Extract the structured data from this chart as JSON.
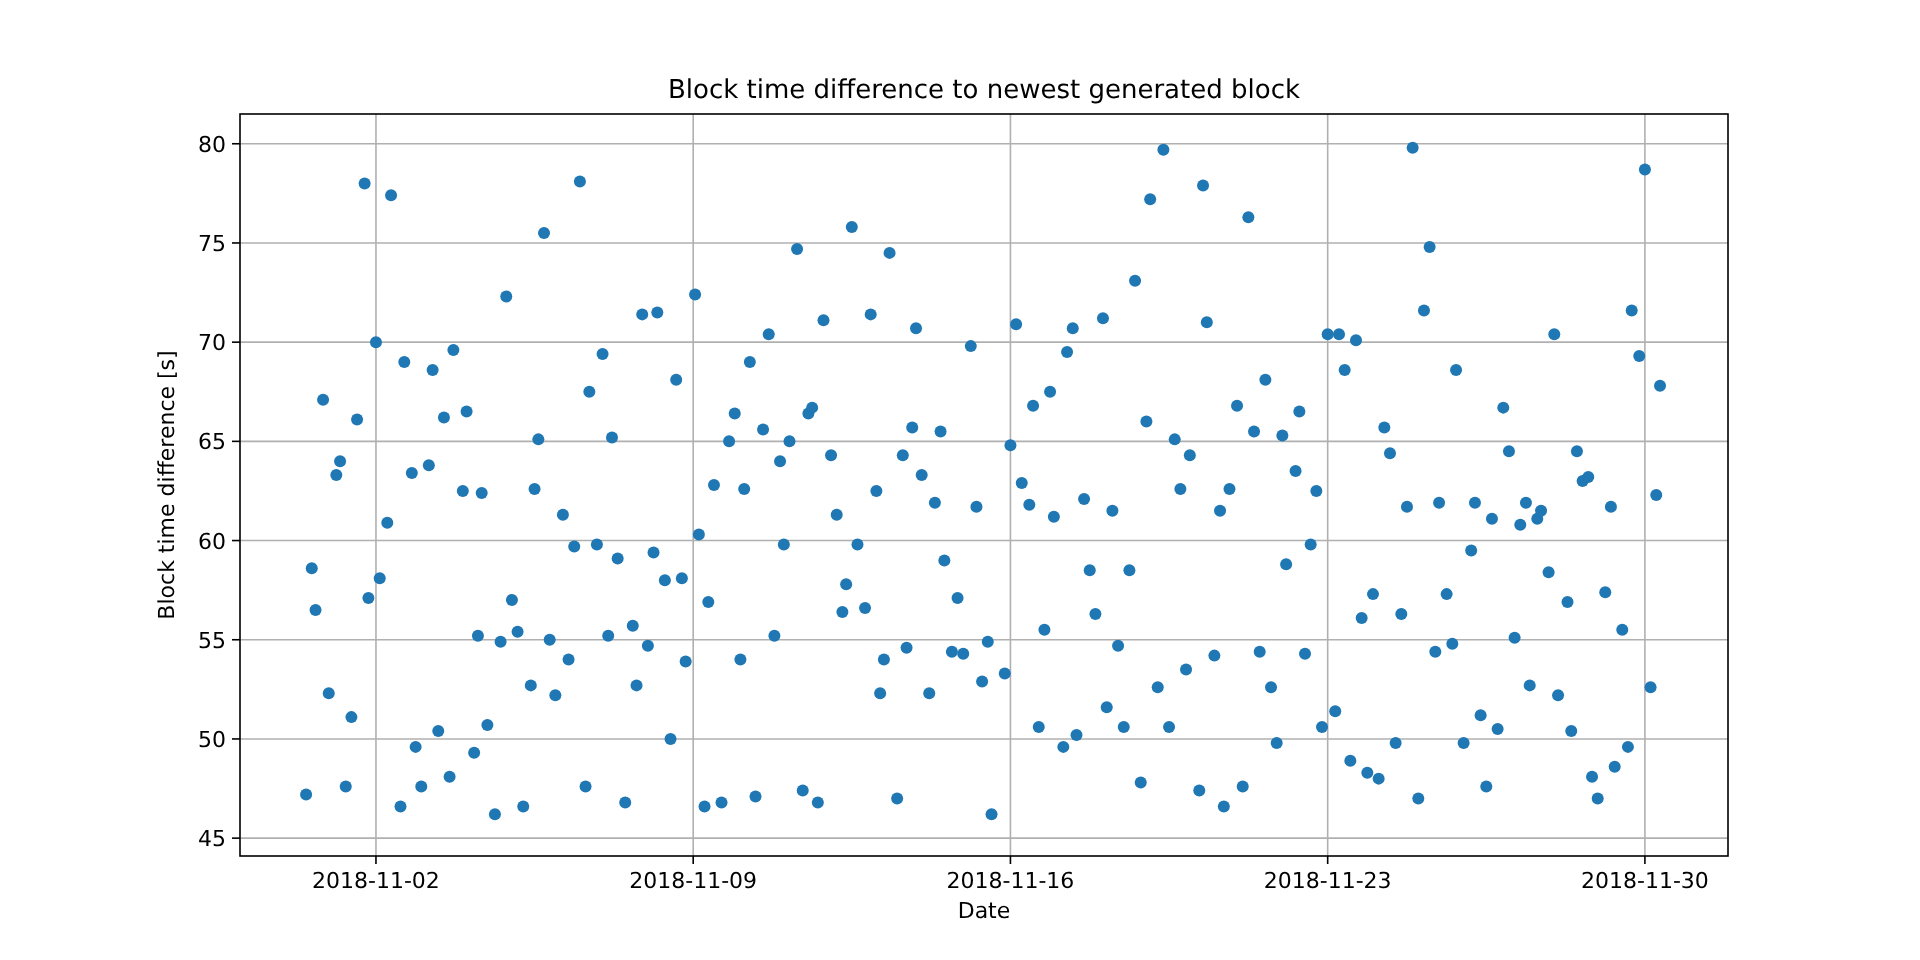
{
  "chart_data": {
    "type": "scatter",
    "title": "Block time difference to newest generated block",
    "xlabel": "Date",
    "ylabel": "Block time difference [s]",
    "xlim": [
      "2018-10-30T00:00",
      "2018-12-01T20:00"
    ],
    "ylim": [
      44.1,
      81.5
    ],
    "xticks": [
      "2018-11-02",
      "2018-11-09",
      "2018-11-16",
      "2018-11-23",
      "2018-11-30"
    ],
    "yticks": [
      45,
      50,
      55,
      60,
      65,
      70,
      75,
      80
    ],
    "grid": true,
    "marker": "circle",
    "series": [
      {
        "color": "#1f77b4",
        "x": [
          "2018-10-31T11:00",
          "2018-10-31T14:00",
          "2018-10-31T16:00",
          "2018-10-31T20:00",
          "2018-10-31T23:00",
          "2018-11-01T03:00",
          "2018-11-01T05:00",
          "2018-11-01T08:00",
          "2018-11-01T11:00",
          "2018-11-01T14:00",
          "2018-11-01T18:00",
          "2018-11-01T20:00",
          "2018-11-02T00:00",
          "2018-11-02T02:00",
          "2018-11-02T06:00",
          "2018-11-02T08:00",
          "2018-11-02T13:00",
          "2018-11-02T15:00",
          "2018-11-02T19:00",
          "2018-11-02T21:00",
          "2018-11-03T00:00",
          "2018-11-03T04:00",
          "2018-11-03T06:00",
          "2018-11-03T09:00",
          "2018-11-03T12:00",
          "2018-11-03T15:00",
          "2018-11-03T17:00",
          "2018-11-03T22:00",
          "2018-11-04T00:00",
          "2018-11-04T04:00",
          "2018-11-04T06:00",
          "2018-11-04T08:00",
          "2018-11-04T11:00",
          "2018-11-04T15:00",
          "2018-11-04T18:00",
          "2018-11-04T21:00",
          "2018-11-05T00:00",
          "2018-11-05T03:00",
          "2018-11-05T06:00",
          "2018-11-05T10:00",
          "2018-11-05T12:00",
          "2018-11-05T14:00",
          "2018-11-05T17:00",
          "2018-11-05T20:00",
          "2018-11-05T23:00",
          "2018-11-06T03:00",
          "2018-11-06T06:00",
          "2018-11-06T09:00",
          "2018-11-06T12:00",
          "2018-11-06T15:00",
          "2018-11-06T17:00",
          "2018-11-06T21:00",
          "2018-11-07T00:00",
          "2018-11-07T03:00",
          "2018-11-07T05:00",
          "2018-11-07T08:00",
          "2018-11-07T12:00",
          "2018-11-07T16:00",
          "2018-11-07T18:00",
          "2018-11-07T21:00",
          "2018-11-08T00:00",
          "2018-11-08T03:00",
          "2018-11-08T05:00",
          "2018-11-08T09:00",
          "2018-11-08T12:00",
          "2018-11-08T15:00",
          "2018-11-08T18:00",
          "2018-11-08T20:00",
          "2018-11-09T01:00",
          "2018-11-09T03:00",
          "2018-11-09T06:00",
          "2018-11-09T08:00",
          "2018-11-09T11:00",
          "2018-11-09T15:00",
          "2018-11-09T19:00",
          "2018-11-09T22:00",
          "2018-11-10T01:00",
          "2018-11-10T03:00",
          "2018-11-10T06:00",
          "2018-11-10T09:00",
          "2018-11-10T13:00",
          "2018-11-10T16:00",
          "2018-11-10T19:00",
          "2018-11-10T22:00",
          "2018-11-11T00:00",
          "2018-11-11T03:00",
          "2018-11-11T07:00",
          "2018-11-11T10:00",
          "2018-11-11T13:00",
          "2018-11-11T15:00",
          "2018-11-11T18:00",
          "2018-11-11T21:00",
          "2018-11-12T01:00",
          "2018-11-12T04:00",
          "2018-11-12T07:00",
          "2018-11-12T09:00",
          "2018-11-12T12:00",
          "2018-11-12T15:00",
          "2018-11-12T19:00",
          "2018-11-12T22:00",
          "2018-11-13T01:00",
          "2018-11-13T03:00",
          "2018-11-13T05:00",
          "2018-11-13T08:00",
          "2018-11-13T12:00",
          "2018-11-13T15:00",
          "2018-11-13T17:00",
          "2018-11-13T20:00",
          "2018-11-13T22:00",
          "2018-11-14T01:00",
          "2018-11-14T05:00",
          "2018-11-14T08:00",
          "2018-11-14T11:00",
          "2018-11-14T13:00",
          "2018-11-14T17:00",
          "2018-11-14T20:00",
          "2018-11-14T23:00",
          "2018-11-15T03:00",
          "2018-11-15T06:00",
          "2018-11-15T09:00",
          "2018-11-15T12:00",
          "2018-11-15T14:00",
          "2018-11-15T21:00",
          "2018-11-16T00:00",
          "2018-11-16T03:00",
          "2018-11-16T06:00",
          "2018-11-16T10:00",
          "2018-11-16T12:00",
          "2018-11-16T15:00",
          "2018-11-16T18:00",
          "2018-11-16T21:00",
          "2018-11-16T23:00",
          "2018-11-17T04:00",
          "2018-11-17T06:00",
          "2018-11-17T09:00",
          "2018-11-17T11:00",
          "2018-11-17T15:00",
          "2018-11-17T18:00",
          "2018-11-17T21:00",
          "2018-11-18T01:00",
          "2018-11-18T03:00",
          "2018-11-18T06:00",
          "2018-11-18T09:00",
          "2018-11-18T12:00",
          "2018-11-18T15:00",
          "2018-11-18T18:00",
          "2018-11-18T21:00",
          "2018-11-19T00:00",
          "2018-11-19T02:00",
          "2018-11-19T06:00",
          "2018-11-19T09:00",
          "2018-11-19T12:00",
          "2018-11-19T15:00",
          "2018-11-19T18:00",
          "2018-11-19T21:00",
          "2018-11-19T23:00",
          "2018-11-20T04:00",
          "2018-11-20T06:00",
          "2018-11-20T08:00",
          "2018-11-20T12:00",
          "2018-11-20T15:00",
          "2018-11-20T17:00",
          "2018-11-20T20:00",
          "2018-11-21T00:00",
          "2018-11-21T03:00",
          "2018-11-21T06:00",
          "2018-11-21T09:00",
          "2018-11-21T12:00",
          "2018-11-21T15:00",
          "2018-11-21T18:00",
          "2018-11-21T21:00",
          "2018-11-22T00:00",
          "2018-11-22T02:00",
          "2018-11-22T07:00",
          "2018-11-22T09:00",
          "2018-11-22T12:00",
          "2018-11-22T15:00",
          "2018-11-22T18:00",
          "2018-11-22T21:00",
          "2018-11-23T00:00",
          "2018-11-23T04:00",
          "2018-11-23T06:00",
          "2018-11-23T09:00",
          "2018-11-23T12:00",
          "2018-11-23T15:00",
          "2018-11-23T18:00",
          "2018-11-23T21:00",
          "2018-11-24T00:00",
          "2018-11-24T03:00",
          "2018-11-24T06:00",
          "2018-11-24T09:00",
          "2018-11-24T12:00",
          "2018-11-24T15:00",
          "2018-11-24T18:00",
          "2018-11-24T21:00",
          "2018-11-25T00:00",
          "2018-11-25T03:00",
          "2018-11-25T06:00",
          "2018-11-25T09:00",
          "2018-11-25T11:00",
          "2018-11-25T15:00",
          "2018-11-25T18:00",
          "2018-11-25T20:00",
          "2018-11-26T00:00",
          "2018-11-26T04:00",
          "2018-11-26T06:00",
          "2018-11-26T09:00",
          "2018-11-26T12:00",
          "2018-11-26T15:00",
          "2018-11-26T18:00",
          "2018-11-26T21:00",
          "2018-11-27T00:00",
          "2018-11-27T03:00",
          "2018-11-27T06:00",
          "2018-11-27T09:00",
          "2018-11-27T11:00",
          "2018-11-27T15:00",
          "2018-11-27T17:00",
          "2018-11-27T21:00",
          "2018-11-28T00:00",
          "2018-11-28T02:00",
          "2018-11-28T07:00",
          "2018-11-28T09:00",
          "2018-11-28T12:00",
          "2018-11-28T15:00",
          "2018-11-28T18:00",
          "2018-11-28T20:00",
          "2018-11-28T23:00",
          "2018-11-29T03:00",
          "2018-11-29T06:00",
          "2018-11-29T08:00",
          "2018-11-29T12:00",
          "2018-11-29T15:00",
          "2018-11-29T17:00",
          "2018-11-29T21:00",
          "2018-11-30T00:00",
          "2018-11-30T03:00",
          "2018-11-30T06:00",
          "2018-11-30T08:00"
        ],
        "values": [
          47.2,
          58.6,
          56.5,
          67.1,
          52.3,
          63.3,
          64.0,
          47.6,
          51.1,
          66.1,
          78.0,
          57.1,
          70.0,
          58.1,
          60.9,
          77.4,
          46.6,
          69.0,
          63.4,
          49.6,
          47.6,
          63.8,
          68.6,
          50.4,
          66.2,
          48.1,
          69.6,
          62.5,
          66.5,
          49.3,
          55.2,
          62.4,
          50.7,
          46.2,
          54.9,
          72.3,
          57.0,
          55.4,
          46.6,
          52.7,
          62.6,
          65.1,
          75.5,
          55.0,
          52.2,
          61.3,
          54.0,
          59.7,
          78.1,
          47.6,
          67.5,
          59.8,
          69.4,
          55.2,
          65.2,
          59.1,
          46.8,
          55.7,
          52.7,
          71.4,
          54.7,
          59.4,
          71.5,
          58.0,
          50.0,
          68.1,
          58.1,
          53.9,
          72.4,
          60.3,
          46.6,
          56.9,
          62.8,
          46.8,
          65.0,
          66.4,
          54.0,
          62.6,
          69.0,
          47.1,
          65.6,
          70.4,
          55.2,
          64.0,
          59.8,
          65.0,
          74.7,
          47.4,
          66.4,
          66.7,
          46.8,
          71.1,
          64.3,
          61.3,
          56.4,
          57.8,
          75.8,
          59.8,
          56.6,
          71.4,
          62.5,
          52.3,
          54.0,
          74.5,
          47.0,
          64.3,
          54.6,
          65.7,
          70.7,
          63.3,
          52.3,
          61.9,
          65.5,
          59.0,
          54.4,
          57.1,
          54.3,
          69.8,
          61.7,
          52.9,
          54.9,
          46.2,
          53.3,
          64.8,
          70.9,
          62.9,
          61.8,
          66.8,
          50.6,
          55.5,
          67.5,
          61.2,
          49.6,
          69.5,
          70.7,
          50.2,
          62.1,
          58.5,
          56.3,
          71.2,
          51.6,
          61.5,
          54.7,
          50.6,
          58.5,
          73.1,
          47.8,
          66.0,
          77.2,
          52.6,
          79.7,
          50.6,
          65.1,
          62.6,
          53.5,
          64.3,
          47.4,
          77.9,
          71.0,
          54.2,
          61.5,
          46.6,
          62.6,
          66.8,
          47.6,
          76.3,
          65.5,
          54.4,
          68.1,
          52.6,
          49.8,
          65.3,
          58.8,
          63.5,
          66.5,
          54.3,
          59.8,
          62.5,
          50.6,
          70.4,
          51.4,
          70.4,
          68.6,
          48.9,
          70.1,
          56.1,
          48.3,
          57.3,
          48.0,
          65.7,
          64.4,
          49.8,
          56.3,
          61.7,
          79.8,
          47.0,
          71.6,
          74.8,
          54.4,
          61.9,
          57.3,
          54.8,
          68.6,
          49.8,
          59.5,
          61.9,
          51.2,
          47.6,
          61.1,
          50.5,
          66.7,
          64.5,
          55.1,
          60.8,
          61.9,
          52.7,
          61.1,
          61.5,
          58.4,
          70.4,
          52.2,
          56.9,
          50.4,
          64.5,
          63.0,
          63.2,
          48.1,
          47.0,
          57.4,
          61.7,
          48.6,
          55.5,
          49.6,
          71.6,
          69.3,
          78.7,
          52.6,
          62.3,
          67.8
        ]
      }
    ]
  }
}
